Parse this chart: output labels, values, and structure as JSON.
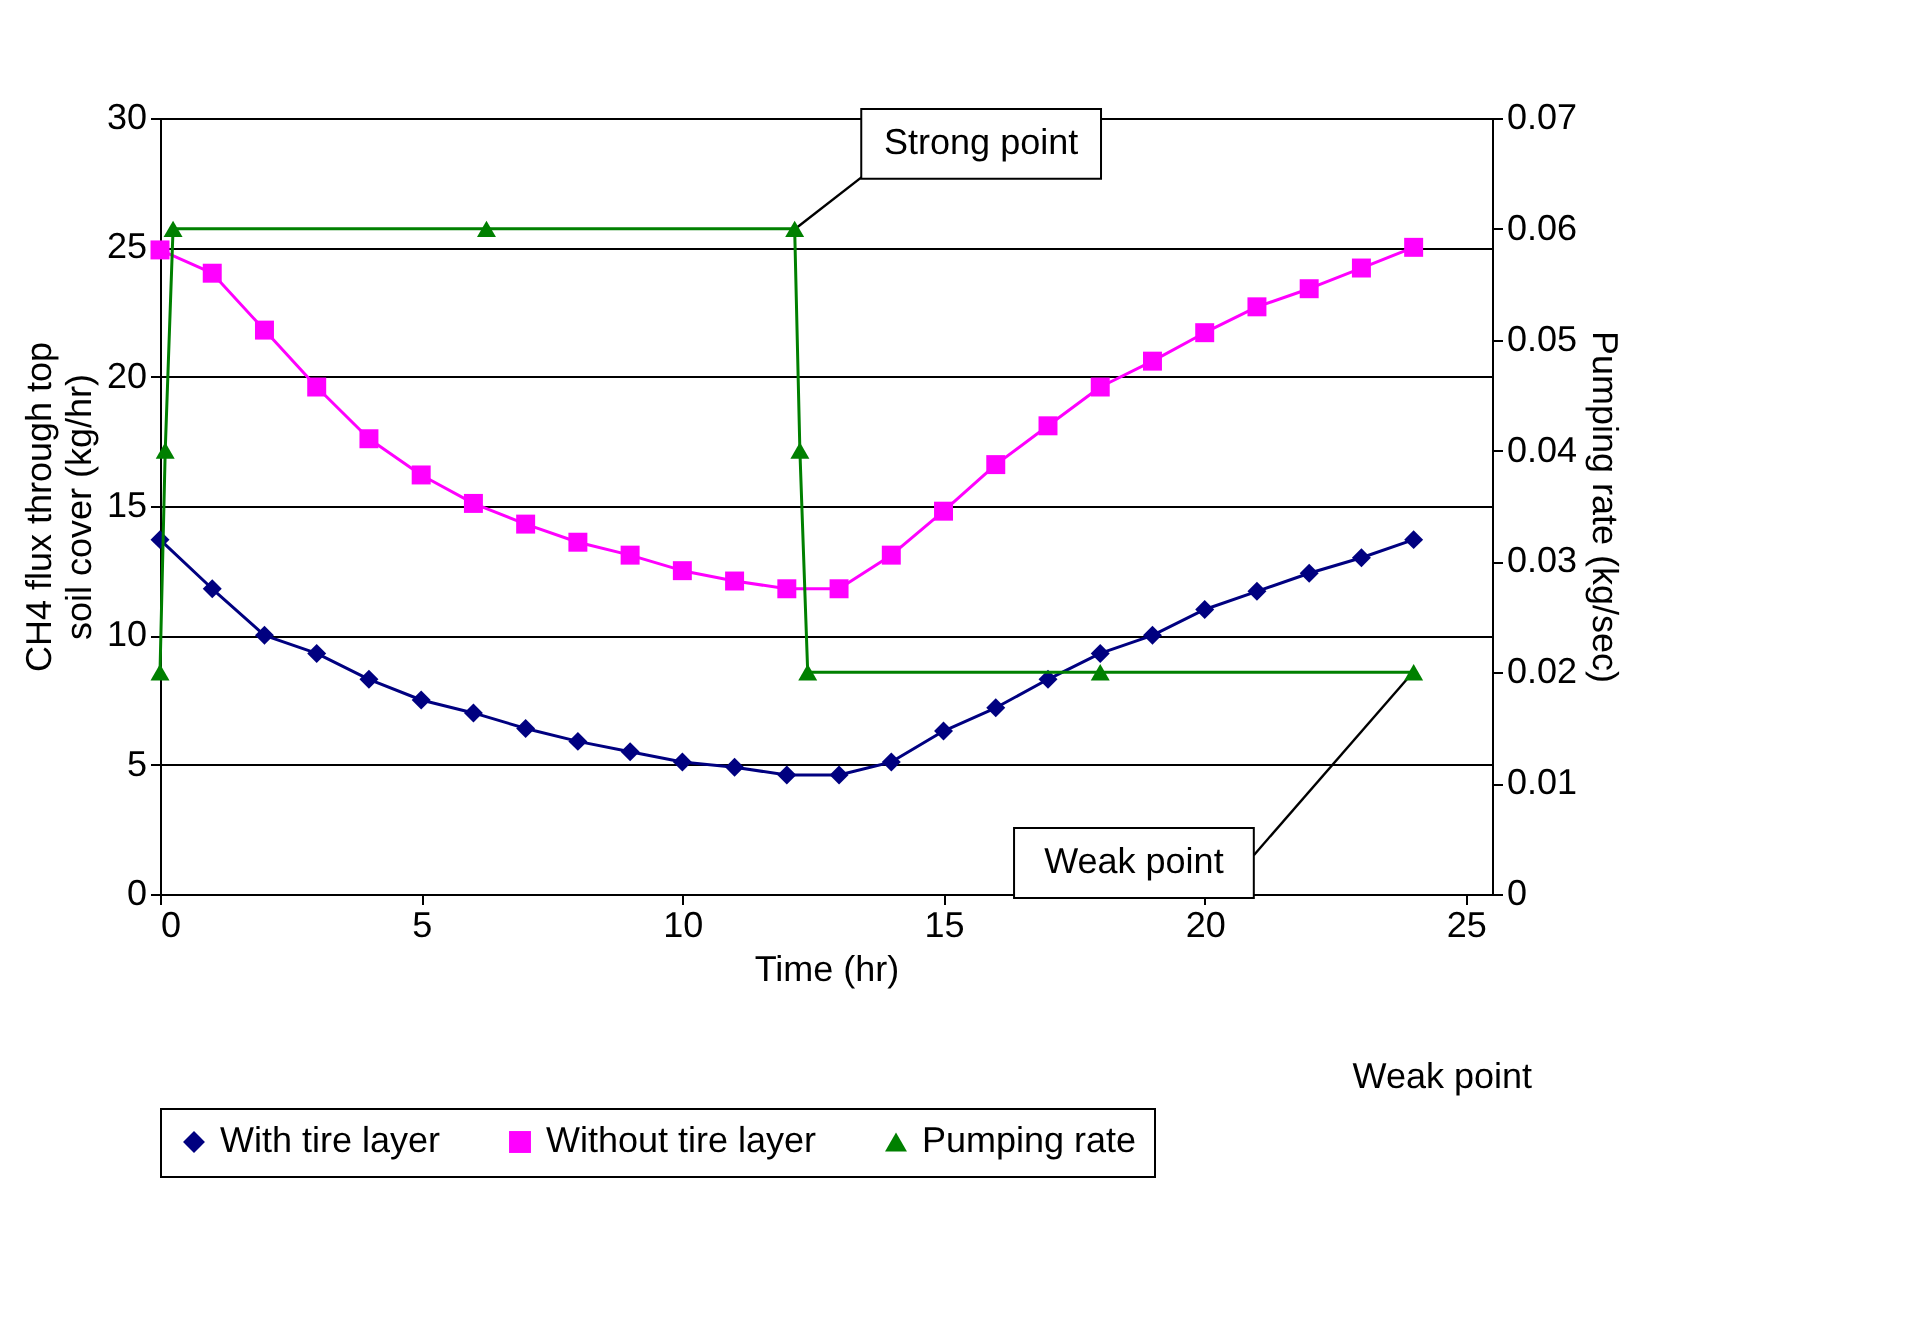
{
  "chart_data": {
    "type": "line",
    "xlabel": "Time (hr)",
    "ylabel": "CH4 flux through top soil cover (kg/hr)",
    "y2label": "Pumping rate  (kg/sec)",
    "xlim": [
      0,
      25.5
    ],
    "xticks": [
      0,
      5,
      10,
      15,
      20,
      25
    ],
    "ylim": [
      0,
      30
    ],
    "yticks": [
      0,
      5,
      10,
      15,
      20,
      25,
      30
    ],
    "y2lim": [
      0,
      0.07
    ],
    "y2ticks": [
      0,
      0.01,
      0.02,
      0.03,
      0.04,
      0.05,
      0.06,
      0.07
    ],
    "grid": "y",
    "legend": "bottom",
    "series": [
      {
        "name": "With tire layer",
        "color": "#000080",
        "marker": "diamond",
        "x": [
          0,
          1,
          2,
          3,
          4,
          5,
          6,
          7,
          8,
          9,
          10,
          11,
          12,
          13,
          14,
          15,
          16,
          17,
          18,
          19,
          20,
          21,
          22,
          23,
          24
        ],
        "values": [
          13.7,
          11.8,
          10.0,
          9.3,
          8.3,
          7.5,
          7.0,
          6.4,
          5.9,
          5.5,
          5.1,
          4.9,
          4.6,
          4.6,
          5.1,
          6.3,
          7.2,
          8.3,
          9.3,
          10.0,
          11.0,
          11.7,
          12.4,
          13.0,
          13.7
        ]
      },
      {
        "name": "Without tire layer",
        "color": "#ff00ff",
        "marker": "square",
        "x": [
          0,
          1,
          2,
          3,
          4,
          5,
          6,
          7,
          8,
          9,
          10,
          11,
          12,
          13,
          14,
          15,
          16,
          17,
          18,
          19,
          20,
          21,
          22,
          23,
          24
        ],
        "values": [
          24.9,
          24.0,
          21.8,
          19.6,
          17.6,
          16.2,
          15.1,
          14.3,
          13.6,
          13.1,
          12.5,
          12.1,
          11.8,
          11.8,
          13.1,
          14.8,
          16.6,
          18.1,
          19.6,
          20.6,
          21.7,
          22.7,
          23.4,
          24.2,
          25.0
        ]
      },
      {
        "name": "Pumping rate",
        "color": "#008000",
        "marker": "triangle",
        "axis": "y2",
        "x": [
          0,
          0.1,
          0.25,
          6.25,
          12.15,
          12.25,
          12.4,
          18,
          24
        ],
        "values": [
          0.02,
          0.04,
          0.06,
          0.06,
          0.06,
          0.04,
          0.02,
          0.02,
          0.02
        ]
      }
    ],
    "annotations": [
      {
        "text": "Strong point",
        "x": 12.15,
        "y": 25.7
      },
      {
        "text": "Weak point",
        "x": 24,
        "y": 8.6
      },
      "Weak point"
    ]
  }
}
